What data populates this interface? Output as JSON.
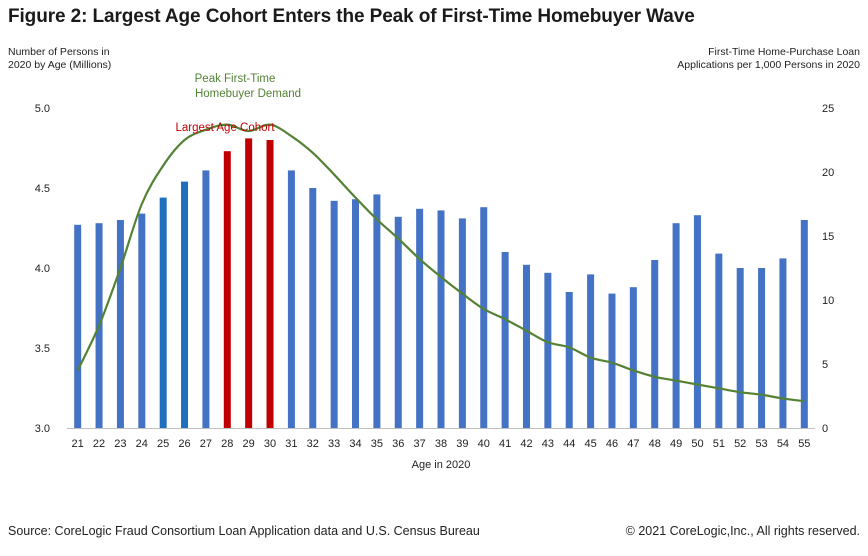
{
  "title": "Figure 2: Largest Age Cohort Enters the Peak of First-Time Homebuyer Wave",
  "left_axis_label_line1": "Number of Persons in",
  "left_axis_label_line2": "2020 by Age (Millions)",
  "right_axis_label_line1": "First-Time Home-Purchase Loan",
  "right_axis_label_line2": "Applications per 1,000 Persons in 2020",
  "xlabel": "Age in 2020",
  "annotation_peak_line1": "Peak  First-Time",
  "annotation_peak_line2": "Homebuyer  Demand",
  "annotation_cohort": "Largest  Age  Cohort",
  "source": "Source: CoreLogic Fraud Consortium Loan Application data and U.S. Census Bureau",
  "copyright": "© 2021 CoreLogic,Inc., All rights reserved.",
  "colors": {
    "bar_default": "#4472c4",
    "bar_highlight_blue": "#1f6fbf",
    "bar_cohort": "#c00000",
    "line": "#548235",
    "annotation_peak": "#548235",
    "annotation_cohort": "#c00000"
  },
  "chart_data": {
    "type": "bar",
    "categories": [
      "21",
      "22",
      "23",
      "24",
      "25",
      "26",
      "27",
      "28",
      "29",
      "30",
      "31",
      "32",
      "33",
      "34",
      "35",
      "36",
      "37",
      "38",
      "39",
      "40",
      "41",
      "42",
      "43",
      "44",
      "45",
      "46",
      "47",
      "48",
      "49",
      "50",
      "51",
      "52",
      "53",
      "54",
      "55"
    ],
    "series": [
      {
        "values": [
          4.27,
          4.28,
          4.3,
          4.34,
          4.44,
          4.54,
          4.61,
          4.73,
          4.81,
          4.8,
          4.61,
          4.5,
          4.42,
          4.43,
          4.46,
          4.32,
          4.37,
          4.36,
          4.31,
          4.38,
          4.1,
          4.02,
          3.97,
          3.85,
          3.96,
          3.84,
          3.88,
          4.05,
          4.28,
          4.33,
          4.09,
          4.0,
          4.0,
          4.06,
          4.3
        ],
        "axis": "left",
        "type": "bar"
      },
      {
        "values": [
          4.5,
          8.0,
          12.5,
          17.5,
          20.5,
          22.5,
          23.3,
          23.7,
          23.2,
          23.7,
          22.8,
          21.5,
          19.8,
          18.0,
          16.3,
          14.8,
          13.2,
          11.8,
          10.5,
          9.3,
          8.5,
          7.6,
          6.7,
          6.3,
          5.5,
          5.1,
          4.5,
          4.0,
          3.7,
          3.4,
          3.1,
          2.8,
          2.6,
          2.3,
          2.1
        ],
        "axis": "right",
        "type": "line"
      }
    ],
    "bar_highlights": {
      "blue": [
        "25",
        "26"
      ],
      "red": [
        "28",
        "29",
        "30"
      ]
    },
    "left_ylim": [
      3.0,
      5.0
    ],
    "left_yticks": [
      "3.0",
      "3.5",
      "4.0",
      "4.5",
      "5.0"
    ],
    "right_ylim": [
      0,
      25
    ],
    "right_yticks": [
      "0",
      "5",
      "10",
      "15",
      "20",
      "25"
    ],
    "grid": false,
    "legend": "none"
  }
}
